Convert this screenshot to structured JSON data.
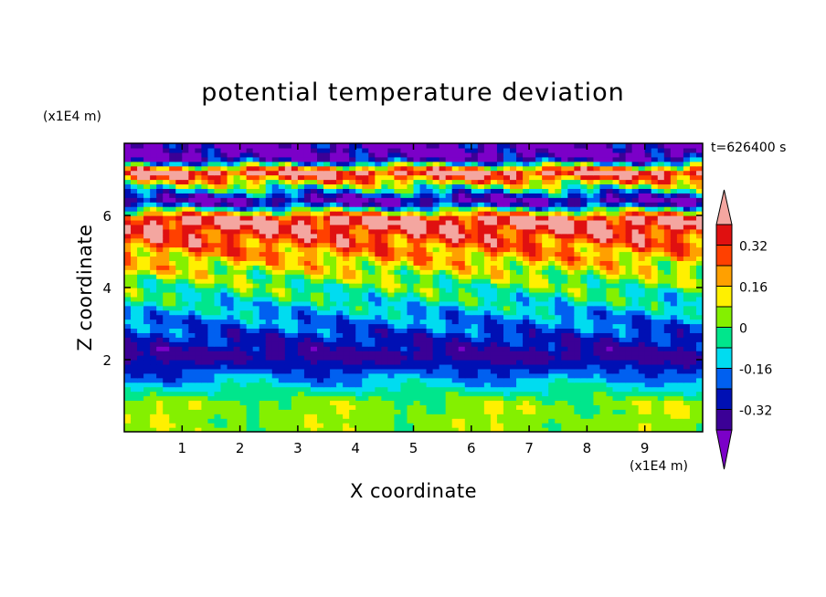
{
  "chart_data": {
    "type": "heatmap",
    "title": "potential temperature deviation",
    "xlabel": "X coordinate",
    "ylabel": "Z coordinate",
    "x_unit_label": "(x1E4 m)",
    "y_unit_label": "(x1E4 m)",
    "time_label": "t=626400 s",
    "xlim": [
      0,
      10
    ],
    "ylim": [
      0,
      8
    ],
    "x_ticks": [
      1,
      2,
      3,
      4,
      5,
      6,
      7,
      8,
      9
    ],
    "y_ticks": [
      2,
      4,
      6
    ],
    "colorbar": {
      "tick_labels": [
        "0.32",
        "0.16",
        "0",
        "-0.16",
        "-0.32"
      ],
      "tick_values": [
        0.32,
        0.16,
        0,
        -0.16,
        -0.32
      ],
      "levels": [
        -0.4,
        -0.32,
        -0.24,
        -0.16,
        -0.08,
        0,
        0.08,
        0.16,
        0.24,
        0.32,
        0.4
      ],
      "colors": [
        "#7b00c8",
        "#3b0096",
        "#0010b4",
        "#0060f0",
        "#00dcf0",
        "#00e68c",
        "#84f000",
        "#fff000",
        "#ffa000",
        "#ff4000",
        "#e01010",
        "#f4a6a0"
      ],
      "extend": "both"
    },
    "bands": [
      {
        "z": 0.8,
        "value": 0.04
      },
      {
        "z": 2.1,
        "value": -0.36
      },
      {
        "z": 4.4,
        "value": 0.06
      },
      {
        "z": 5.9,
        "value": 0.44
      },
      {
        "z": 6.4,
        "value": -0.44
      },
      {
        "z": 7.2,
        "value": 0.44
      },
      {
        "z": 7.6,
        "value": -0.44
      }
    ]
  }
}
